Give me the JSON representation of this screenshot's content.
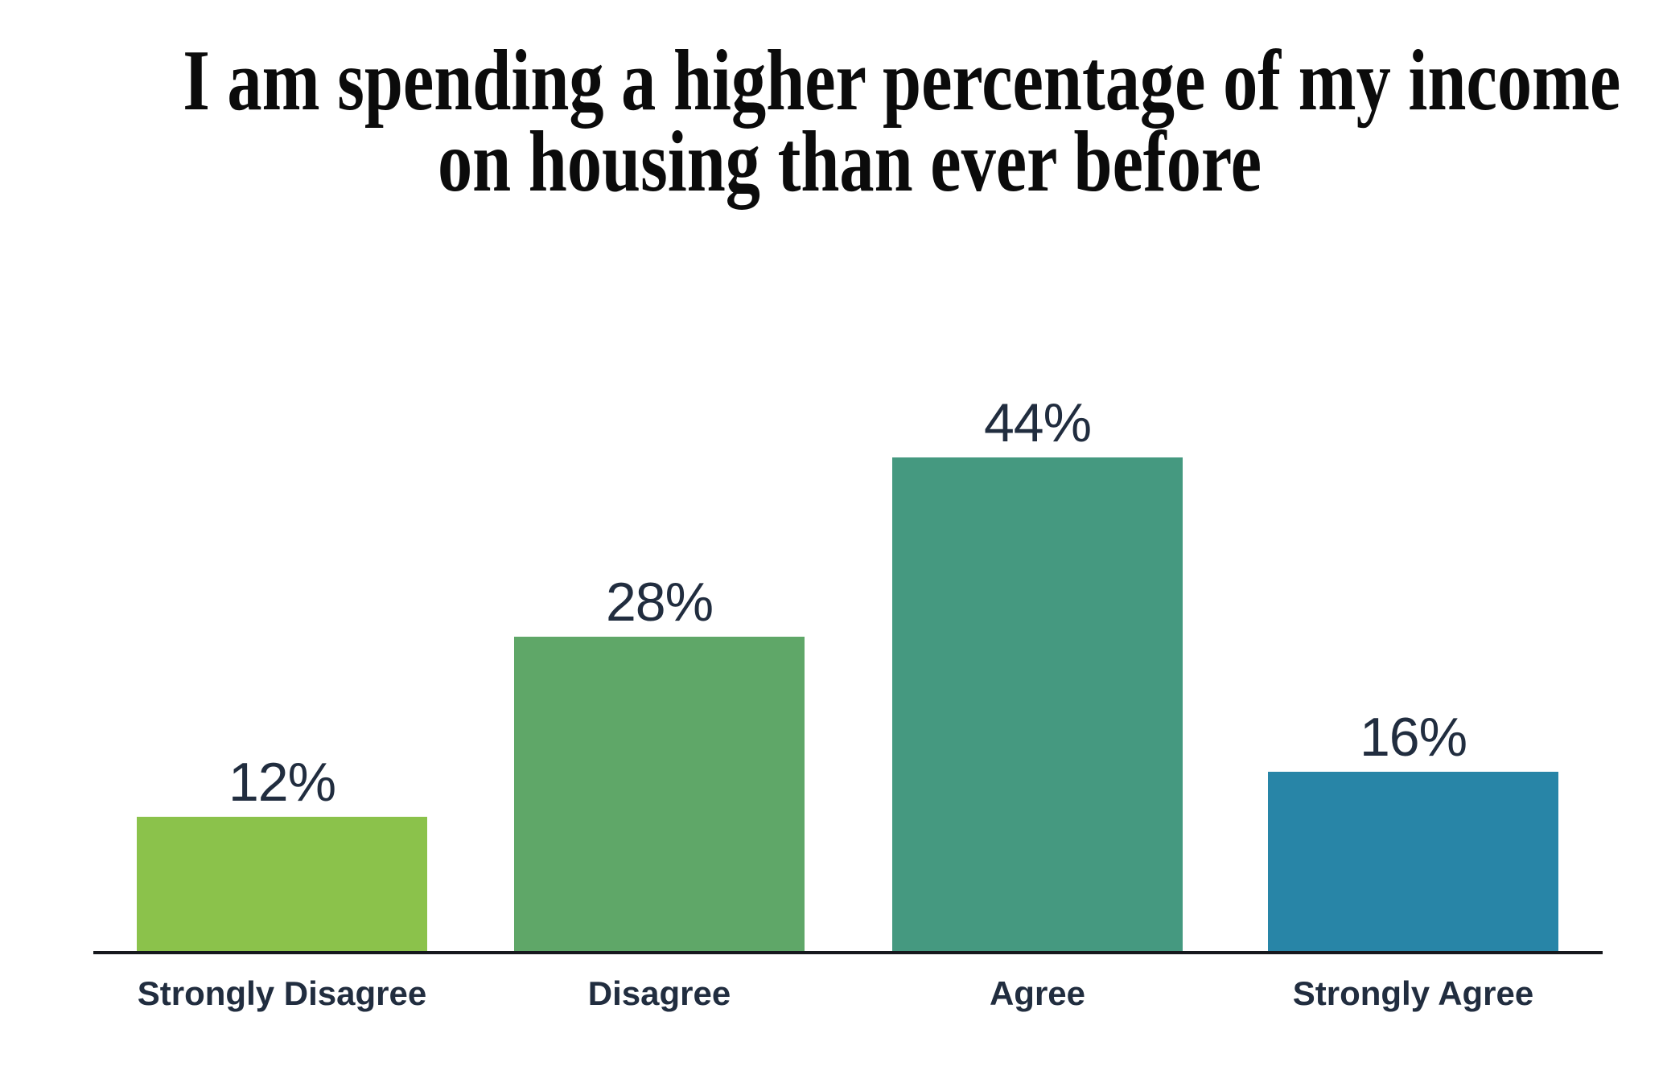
{
  "page": {
    "background": "#ffffff"
  },
  "title": {
    "line1": "I am spending a higher percentage of my income",
    "line2": "on housing than ever before",
    "color": "#0b0b0b"
  },
  "chart_data": {
    "type": "bar",
    "title": "I am spending a higher percentage of my income on housing than ever before",
    "categories": [
      "Strongly Disagree",
      "Disagree",
      "Agree",
      "Strongly Agree"
    ],
    "values": [
      12,
      28,
      44,
      16
    ],
    "value_labels": [
      "12%",
      "28%",
      "44%",
      "16%"
    ],
    "unit": "percent",
    "xlabel": "",
    "ylabel": "",
    "ylim": [
      0,
      50
    ],
    "grid": false,
    "legend": "none",
    "bar_colors": [
      "#8bc24b",
      "#5fa768",
      "#459980",
      "#2885a7"
    ],
    "label_color": "#212d3f",
    "axis_color": "#16181d"
  }
}
